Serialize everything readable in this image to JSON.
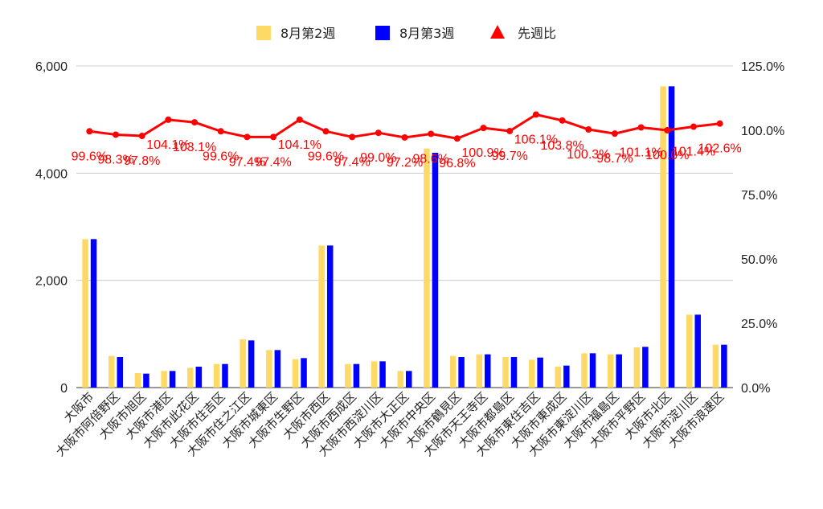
{
  "chart_data": {
    "type": "bar",
    "title": "",
    "xlabel": "",
    "ylabel": "",
    "categories": [
      "大阪市",
      "大阪市阿倍野区",
      "大阪市旭区",
      "大阪市港区",
      "大阪市此花区",
      "大阪市住吉区",
      "大阪市住之江区",
      "大阪市城東区",
      "大阪市生野区",
      "大阪市西区",
      "大阪市西成区",
      "大阪市西淀川区",
      "大阪市大正区",
      "大阪市中央区",
      "大阪市鶴見区",
      "大阪市天王寺区",
      "大阪市都島区",
      "大阪市東住吉区",
      "大阪市東成区",
      "大阪市東淀川区",
      "大阪市福島区",
      "大阪市平野区",
      "大阪市北区",
      "大阪市淀川区",
      "大阪市浪速区"
    ],
    "series": [
      {
        "name": "8月第2週",
        "type": "bar",
        "axis": "left",
        "color": "#ffd966",
        "values": [
          2770,
          590,
          270,
          310,
          370,
          440,
          900,
          700,
          530,
          2650,
          440,
          490,
          310,
          4460,
          590,
          620,
          570,
          520,
          390,
          640,
          620,
          750,
          5620,
          1360,
          800
        ]
      },
      {
        "name": "8月第3週",
        "type": "bar",
        "axis": "left",
        "color": "#0000ff",
        "values": [
          2770,
          570,
          260,
          310,
          390,
          440,
          880,
          700,
          550,
          2650,
          440,
          490,
          310,
          4380,
          570,
          620,
          570,
          560,
          410,
          640,
          620,
          760,
          5620,
          1360,
          800
        ]
      },
      {
        "name": "先週比",
        "type": "line",
        "axis": "right",
        "color": "#ff0000",
        "values": [
          99.6,
          98.3,
          97.8,
          104.1,
          103.1,
          99.6,
          97.4,
          97.4,
          104.1,
          99.6,
          97.4,
          99.0,
          97.2,
          98.6,
          96.8,
          100.9,
          99.7,
          106.1,
          103.8,
          100.3,
          98.7,
          101.1,
          100.0,
          101.4,
          102.6
        ],
        "labels": [
          "99.6%",
          "98.3%",
          "97.8%",
          "104.1%",
          "103.1%",
          "99.6%",
          "97.4%",
          "97.4%",
          "104.1%",
          "99.6%",
          "97.4%",
          "99.0%",
          "97.2%",
          "98.6%",
          "96.8%",
          "100.9%",
          "99.7%",
          "106.1%",
          "103.8%",
          "100.3%",
          "98.7%",
          "101.1%",
          "100.0%",
          "101.4%",
          "102.6%"
        ]
      }
    ],
    "left_axis": {
      "ylim": [
        0,
        6000
      ],
      "ticks": [
        "0",
        "2,000",
        "4,000",
        "6,000"
      ],
      "tick_values": [
        0,
        2000,
        4000,
        6000
      ]
    },
    "right_axis": {
      "ylim": [
        0,
        125
      ],
      "ticks": [
        "0.0%",
        "25.0%",
        "50.0%",
        "75.0%",
        "100.0%",
        "125.0%"
      ],
      "tick_values": [
        0,
        25,
        50,
        75,
        100,
        125
      ]
    },
    "grid": true,
    "legend": "top"
  },
  "legend": {
    "items": [
      {
        "label": "8月第2週",
        "color": "#ffd966",
        "icon": "square"
      },
      {
        "label": "8月第3週",
        "color": "#0000ff",
        "icon": "square"
      },
      {
        "label": "先週比",
        "color": "#ff0000",
        "icon": "triangle"
      }
    ]
  }
}
